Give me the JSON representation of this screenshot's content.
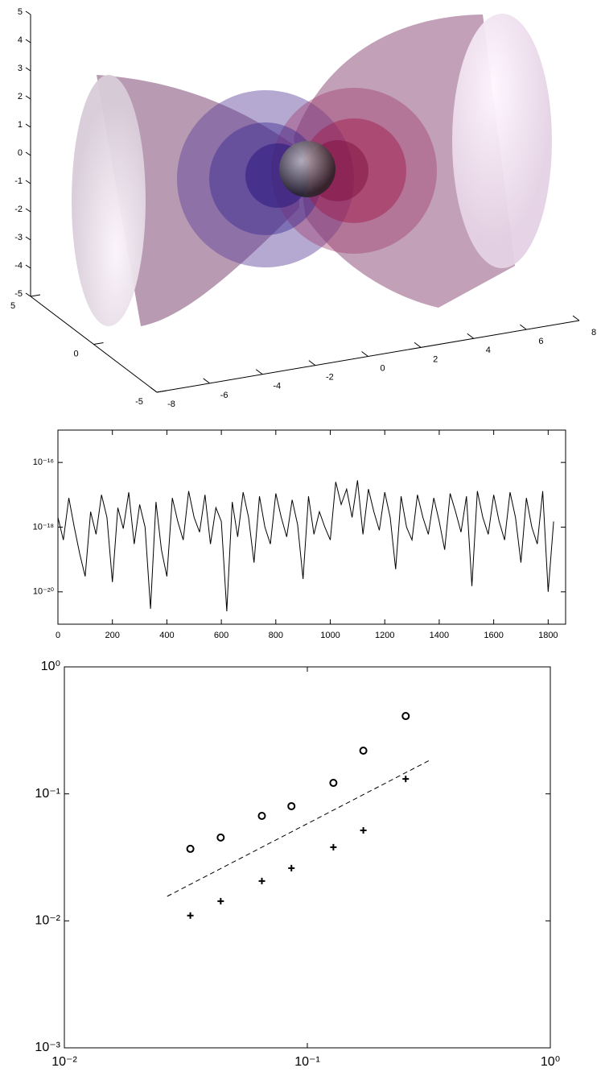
{
  "chart_data": [
    {
      "type": "surface3d",
      "xlim": [
        -8,
        8
      ],
      "ylim": [
        -5,
        5
      ],
      "zlim": [
        -5,
        5
      ],
      "xticks": [
        -8,
        -6,
        -4,
        -2,
        0,
        2,
        4,
        6,
        8
      ],
      "yticks": [
        -5,
        0,
        5
      ],
      "zticks": [
        -5,
        -4,
        -3,
        -2,
        -1,
        0,
        1,
        2,
        3,
        4,
        5
      ]
    },
    {
      "type": "line",
      "log_y": true,
      "color": "#000000",
      "xlim": [
        0,
        1864
      ],
      "ylim": [
        1e-21,
        1e-15
      ],
      "xticks": [
        0,
        200,
        400,
        600,
        800,
        1000,
        1200,
        1400,
        1600,
        1800
      ],
      "yticks": [
        {
          "value": 1e-16,
          "label": "10⁻¹⁶"
        },
        {
          "value": 1e-18,
          "label": "10⁻¹⁸"
        },
        {
          "value": 1e-20,
          "label": "10⁻²⁰"
        }
      ],
      "x": [
        0,
        20,
        40,
        60,
        80,
        100,
        120,
        140,
        160,
        180,
        200,
        220,
        240,
        260,
        280,
        300,
        320,
        340,
        360,
        380,
        400,
        420,
        440,
        460,
        480,
        500,
        520,
        540,
        560,
        580,
        600,
        620,
        640,
        660,
        680,
        700,
        720,
        740,
        760,
        780,
        800,
        820,
        840,
        860,
        880,
        900,
        920,
        940,
        960,
        980,
        1000,
        1020,
        1040,
        1060,
        1080,
        1100,
        1120,
        1140,
        1160,
        1180,
        1200,
        1220,
        1240,
        1260,
        1280,
        1300,
        1320,
        1340,
        1360,
        1380,
        1400,
        1420,
        1440,
        1460,
        1480,
        1500,
        1520,
        1540,
        1560,
        1580,
        1600,
        1620,
        1640,
        1660,
        1680,
        1700,
        1720,
        1740,
        1760,
        1780,
        1800,
        1820
      ],
      "values": [
        2e-18,
        4e-19,
        8e-18,
        1e-18,
        1.5e-19,
        3e-20,
        3e-18,
        6e-19,
        1e-17,
        2e-18,
        2e-20,
        4e-18,
        9e-19,
        1.2e-17,
        3e-19,
        5e-18,
        1e-18,
        3e-21,
        6e-18,
        2e-19,
        3e-20,
        8e-18,
        1.5e-18,
        4e-19,
        1.3e-17,
        2e-18,
        7e-19,
        1e-17,
        3e-19,
        4e-18,
        1.5e-18,
        2.5e-21,
        6e-18,
        5e-19,
        1.2e-17,
        2e-18,
        8e-20,
        9e-18,
        1e-18,
        3e-19,
        1.1e-17,
        2e-18,
        5e-19,
        7e-18,
        1.2e-18,
        2.5e-20,
        9e-18,
        6e-19,
        3e-18,
        1e-18,
        4e-19,
        2.5e-17,
        5e-18,
        1.5e-17,
        2e-18,
        2.8e-17,
        6e-19,
        1.5e-17,
        3e-18,
        8e-19,
        1.2e-17,
        2e-18,
        5e-20,
        9e-18,
        1e-18,
        4e-19,
        1e-17,
        2e-18,
        6e-19,
        8e-18,
        1.5e-18,
        2e-19,
        1.1e-17,
        3e-18,
        7e-19,
        9e-18,
        1.5e-20,
        1.3e-17,
        2e-18,
        6e-19,
        1e-17,
        1.5e-18,
        4e-19,
        1.2e-17,
        2e-18,
        8e-20,
        8e-18,
        1e-18,
        3e-19,
        1.3e-17,
        1e-20,
        1.5e-18
      ]
    },
    {
      "type": "scatter",
      "log_x": true,
      "log_y": true,
      "xlim": [
        0.01,
        1
      ],
      "ylim": [
        0.001,
        1
      ],
      "xticks": [
        {
          "value": 0.01,
          "label": "10⁻²"
        },
        {
          "value": 0.1,
          "label": "10⁻¹"
        },
        {
          "value": 1,
          "label": "10⁰"
        }
      ],
      "yticks": [
        {
          "value": 0.001,
          "label": "10⁻³"
        },
        {
          "value": 0.01,
          "label": "10⁻²"
        },
        {
          "value": 0.1,
          "label": "10⁻¹"
        },
        {
          "value": 1,
          "label": "10⁰"
        }
      ],
      "series": [
        {
          "marker": "o",
          "color": "#000000",
          "x": [
            0.033,
            0.044,
            0.065,
            0.086,
            0.128,
            0.17,
            0.254
          ],
          "values": [
            0.0369,
            0.0453,
            0.0671,
            0.08,
            0.122,
            0.219,
            0.41
          ]
        },
        {
          "marker": "+",
          "color": "#000000",
          "x": [
            0.033,
            0.044,
            0.065,
            0.086,
            0.128,
            0.17,
            0.254
          ],
          "values": [
            0.011,
            0.0143,
            0.0206,
            0.026,
            0.038,
            0.0516,
            0.131
          ]
        },
        {
          "linestyle": "dashed",
          "color": "#000000",
          "x": [
            0.0265,
            0.324
          ],
          "values": [
            0.0156,
            0.187
          ]
        }
      ]
    }
  ]
}
